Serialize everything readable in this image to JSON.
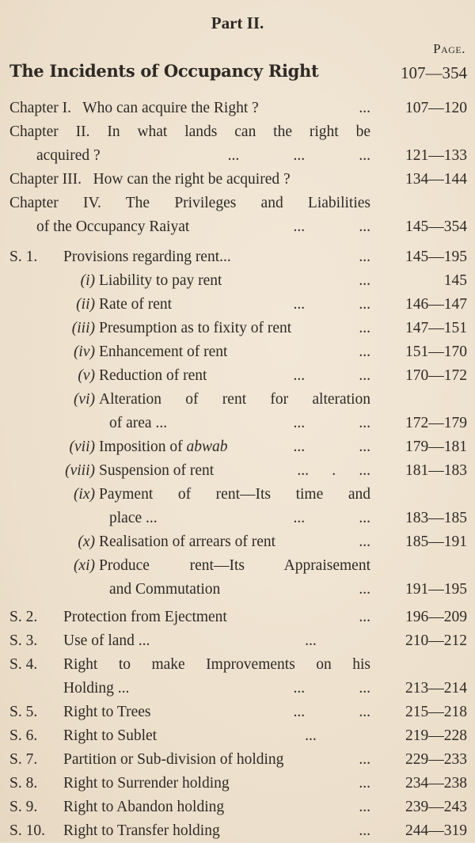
{
  "part_title": "Part II.",
  "page_header": "Page.",
  "main_heading": {
    "text": "The Incidents of Occupancy Right",
    "pages": "107—354"
  },
  "groups": [
    {
      "kind": "chapter",
      "rows": [
        {
          "text": "Chapter I.   Who can acquire the Right ?",
          "dots": "...",
          "pages": "107—120"
        },
        {
          "text": "Chapter II.  In what lands can the right be",
          "justify": true
        },
        {
          "text": "acquired ?",
          "cont": true,
          "dots": "...              ...              ...",
          "pages": "121—133"
        },
        {
          "text": "Chapter III.   How can the right be acquired ?",
          "pages": "134—144"
        },
        {
          "text": "Chapter IV.  The Privileges and Liabilities",
          "justify": true
        },
        {
          "text": "of the Occupancy Raiyat",
          "cont": true,
          "dots": "...              ...",
          "pages": "145—354"
        }
      ]
    },
    {
      "kind": "mixed",
      "rows": [
        {
          "prefix": "S. 1.",
          "type": "section",
          "text": "Provisions regarding rent...",
          "dots": "...",
          "pages": "145—195"
        },
        {
          "prefix": "(i)",
          "type": "sub",
          "text": "Liability to pay rent",
          "dots": "...",
          "pages": "145"
        },
        {
          "prefix": "(ii)",
          "type": "sub",
          "text": "Rate of rent",
          "dots": "...              ...",
          "pages": "146—147"
        },
        {
          "prefix": "(iii)",
          "type": "sub",
          "text": "Presumption as to fixity of rent",
          "dots": "...",
          "pages": "147—151"
        },
        {
          "prefix": "(iv)",
          "type": "sub",
          "text": "Enhancement of rent",
          "dots": "...",
          "pages": "151—170"
        },
        {
          "prefix": "(v)",
          "type": "sub",
          "text": "Reduction of rent",
          "dots": "...              ...",
          "pages": "170—172"
        },
        {
          "prefix": "(vi)",
          "type": "sub",
          "text": "Alteration of rent for alteration",
          "justify": true
        },
        {
          "type": "subcont",
          "text": "of area ...",
          "dots": "...              ...",
          "pages": "172—179"
        },
        {
          "prefix": "(vii)",
          "type": "sub",
          "text": "Imposition of ",
          "text_italic": "abwab",
          "dots": "...              ...",
          "pages": "179—181"
        },
        {
          "prefix": "(viii)",
          "type": "sub",
          "text": "Suspension of rent",
          "dots": "...      .      ...",
          "pages": "181—183"
        },
        {
          "prefix": "(ix)",
          "type": "sub",
          "text": "Payment of rent—Its time and",
          "justify": true
        },
        {
          "type": "subcont",
          "text": "place ...",
          "dots": "...              ...",
          "pages": "183—185"
        },
        {
          "prefix": "(x)",
          "type": "sub",
          "text": "Realisation of arrears of rent",
          "dots": "...",
          "pages": "185—191"
        },
        {
          "prefix": "(xi)",
          "type": "sub",
          "text": "Produce rent—Its Appraisement",
          "justify": true
        },
        {
          "type": "subcont",
          "text": "and Commutation",
          "dots": "...",
          "pages": "191—195"
        }
      ]
    },
    {
      "kind": "section",
      "rows": [
        {
          "prefix": "S. 2.",
          "type": "section",
          "text": "Protection from Ejectment",
          "dots": "...",
          "pages": "196—209"
        },
        {
          "prefix": "S. 3.",
          "type": "section",
          "text": "Use of land ...",
          "dots": "...              ",
          "pages": "210—212"
        },
        {
          "prefix": "S. 4.",
          "type": "section",
          "text": "Right to make Improvements on his",
          "justify": true
        },
        {
          "type": "seccont",
          "text": "Holding ...",
          "dots": "...              ...",
          "pages": "213—214"
        },
        {
          "prefix": "S. 5.",
          "type": "section",
          "text": "Right to Trees",
          "dots": "...              ...",
          "pages": "215—218"
        },
        {
          "prefix": "S. 6.",
          "type": "section",
          "text": "Right to Sublet",
          "dots": "...              ",
          "pages": "219—228"
        },
        {
          "prefix": "S. 7.",
          "type": "section",
          "text": "Partition or Sub-division of holding",
          "dots": "...",
          "pages": "229—233"
        },
        {
          "prefix": "S. 8.",
          "type": "section",
          "text": "Right to Surrender holding",
          "dots": "...",
          "pages": "234—238"
        },
        {
          "prefix": "S. 9.",
          "type": "section",
          "text": "Right to Abandon holding",
          "dots": "...",
          "pages": "239—243"
        },
        {
          "prefix": "S. 10.",
          "type": "section",
          "text": "Right to Transfer holding",
          "dots": "...",
          "pages": "244—319"
        }
      ]
    }
  ]
}
